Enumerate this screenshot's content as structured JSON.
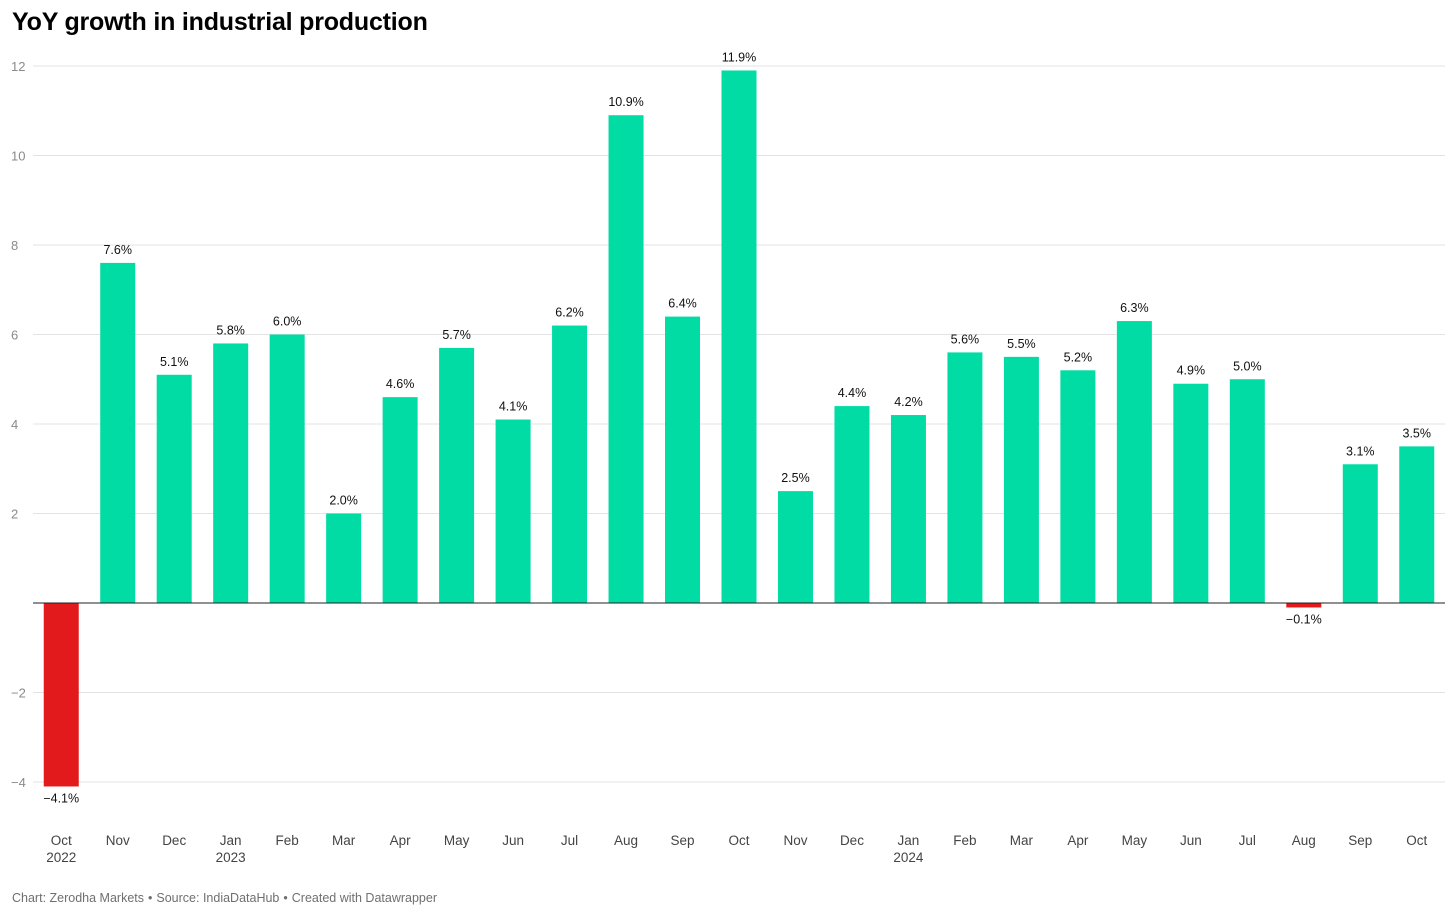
{
  "title": "YoY growth in industrial production",
  "footer": {
    "chart_by": "Chart: Zerodha Markets",
    "source": "Source: IndiaDataHub",
    "created": "Created with Datawrapper"
  },
  "colors": {
    "positive": "#01dba4",
    "negative": "#e31a1c",
    "grid": "#e3e3e3",
    "baseline": "#222222"
  },
  "chart_data": {
    "type": "bar",
    "title": "YoY growth in industrial production",
    "xlabel": "",
    "ylabel": "",
    "ylim": [
      -4.6,
      12.4
    ],
    "yticks": [
      -4,
      -2,
      2,
      4,
      6,
      8,
      10,
      12
    ],
    "grid": true,
    "categories": [
      "Oct",
      "Nov",
      "Dec",
      "Jan",
      "Feb",
      "Mar",
      "Apr",
      "May",
      "Jun",
      "Jul",
      "Aug",
      "Sep",
      "Oct",
      "Nov",
      "Dec",
      "Jan",
      "Feb",
      "Mar",
      "Apr",
      "May",
      "Jun",
      "Jul",
      "Aug",
      "Sep",
      "Oct"
    ],
    "year_labels": [
      "2022",
      "",
      "",
      "2023",
      "",
      "",
      "",
      "",
      "",
      "",
      "",
      "",
      "",
      "",
      "",
      "2024",
      "",
      "",
      "",
      "",
      "",
      "",
      "",
      "",
      ""
    ],
    "values": [
      -4.1,
      7.6,
      5.1,
      5.8,
      6.0,
      2.0,
      4.6,
      5.7,
      4.1,
      6.2,
      10.9,
      6.4,
      11.9,
      2.5,
      4.4,
      4.2,
      5.6,
      5.5,
      5.2,
      6.3,
      4.9,
      5.0,
      -0.1,
      3.1,
      3.5
    ],
    "value_labels": [
      "−4.1%",
      "7.6%",
      "5.1%",
      "5.8%",
      "6.0%",
      "2.0%",
      "4.6%",
      "5.7%",
      "4.1%",
      "6.2%",
      "10.9%",
      "6.4%",
      "11.9%",
      "2.5%",
      "4.4%",
      "4.2%",
      "5.6%",
      "5.5%",
      "5.2%",
      "6.3%",
      "4.9%",
      "5.0%",
      "−0.1%",
      "3.1%",
      "3.5%"
    ]
  }
}
